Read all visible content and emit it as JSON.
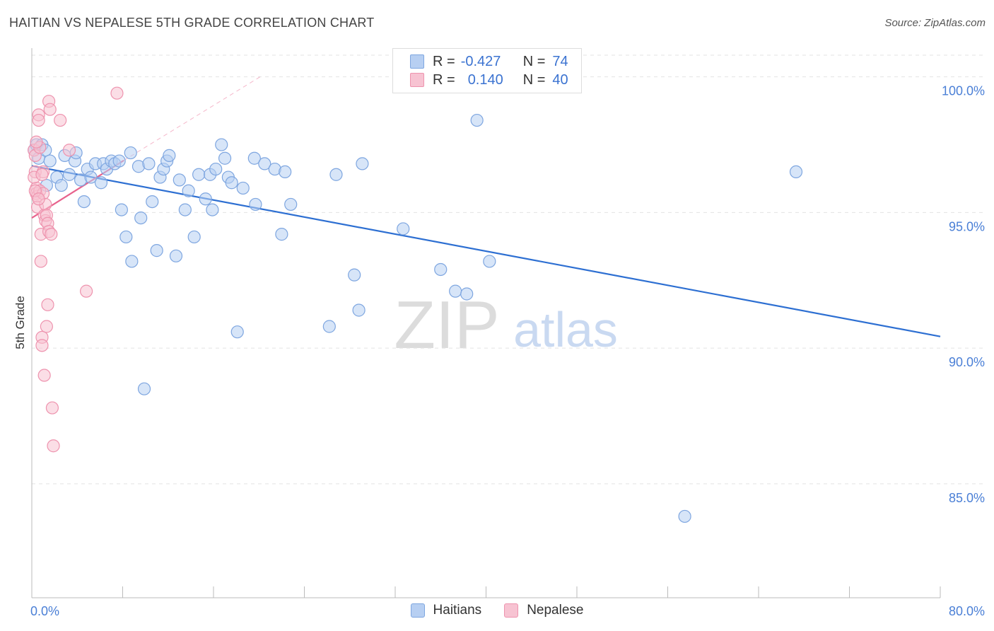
{
  "header": {
    "title": "HAITIAN VS NEPALESE 5TH GRADE CORRELATION CHART",
    "source": "Source: ZipAtlas.com"
  },
  "legend_top": {
    "r_label": "R =",
    "n_label": "N =",
    "haitians": {
      "r": "-0.427",
      "n": "74"
    },
    "nepalese": {
      "r": "0.140",
      "n": "40"
    }
  },
  "colors": {
    "haitians_fill": "#b7cff2",
    "haitians_stroke": "#7ea6e0",
    "haitians_line": "#2d6fd2",
    "nepalese_fill": "#f7c3d2",
    "nepalese_stroke": "#ee93ae",
    "nepalese_line": "#e8628c",
    "axis_label": "#4a7fd6",
    "grid": "#e3e3e3"
  },
  "watermark": {
    "zip": "ZIP",
    "atlas": "atlas"
  },
  "chart_data": {
    "type": "scatter",
    "title": "HAITIAN VS NEPALESE 5TH GRADE CORRELATION CHART",
    "xlabel": "",
    "ylabel": "5th Grade",
    "xlim": [
      0,
      80
    ],
    "ylim": [
      80.8,
      100.8
    ],
    "x_tick_labels": [
      "0.0%",
      "80.0%"
    ],
    "y_ticks": [
      85,
      90,
      95,
      100
    ],
    "y_tick_labels": [
      "85.0%",
      "90.0%",
      "95.0%",
      "100.0%"
    ],
    "legend": [
      "Haitians",
      "Nepalese"
    ],
    "series": [
      {
        "name": "Haitians",
        "trend": {
          "x": [
            0,
            80
          ],
          "y": [
            96.72,
            90.43
          ]
        },
        "points": [
          [
            0.2,
            97.3
          ],
          [
            0.4,
            97.5
          ],
          [
            0.6,
            97.0
          ],
          [
            0.9,
            97.5
          ],
          [
            1.2,
            97.3
          ],
          [
            1.3,
            96.0
          ],
          [
            1.6,
            96.9
          ],
          [
            2.2,
            96.3
          ],
          [
            2.6,
            96.0
          ],
          [
            2.9,
            97.1
          ],
          [
            3.3,
            96.4
          ],
          [
            3.8,
            96.9
          ],
          [
            3.9,
            97.2
          ],
          [
            4.3,
            96.2
          ],
          [
            4.6,
            95.4
          ],
          [
            4.9,
            96.6
          ],
          [
            5.2,
            96.3
          ],
          [
            5.6,
            96.8
          ],
          [
            6.1,
            96.1
          ],
          [
            6.3,
            96.8
          ],
          [
            6.6,
            96.6
          ],
          [
            7.0,
            96.9
          ],
          [
            7.3,
            96.8
          ],
          [
            7.7,
            96.9
          ],
          [
            7.9,
            95.1
          ],
          [
            8.3,
            94.1
          ],
          [
            8.7,
            97.2
          ],
          [
            8.8,
            93.2
          ],
          [
            9.4,
            96.7
          ],
          [
            9.6,
            94.8
          ],
          [
            9.9,
            88.5
          ],
          [
            10.3,
            96.8
          ],
          [
            10.6,
            95.4
          ],
          [
            11.0,
            93.6
          ],
          [
            11.3,
            96.3
          ],
          [
            11.6,
            96.6
          ],
          [
            11.9,
            96.9
          ],
          [
            12.1,
            97.1
          ],
          [
            12.7,
            93.4
          ],
          [
            13.0,
            96.2
          ],
          [
            13.5,
            95.1
          ],
          [
            13.8,
            95.8
          ],
          [
            14.3,
            94.1
          ],
          [
            14.7,
            96.4
          ],
          [
            15.3,
            95.5
          ],
          [
            15.7,
            96.4
          ],
          [
            15.9,
            95.1
          ],
          [
            16.2,
            96.6
          ],
          [
            16.7,
            97.5
          ],
          [
            17.0,
            97.0
          ],
          [
            17.3,
            96.3
          ],
          [
            17.6,
            96.1
          ],
          [
            18.1,
            90.6
          ],
          [
            18.6,
            95.9
          ],
          [
            19.6,
            97.0
          ],
          [
            19.7,
            95.3
          ],
          [
            20.5,
            96.8
          ],
          [
            21.4,
            96.6
          ],
          [
            22.0,
            94.2
          ],
          [
            22.3,
            96.5
          ],
          [
            22.8,
            95.3
          ],
          [
            26.2,
            90.8
          ],
          [
            26.8,
            96.4
          ],
          [
            28.4,
            92.7
          ],
          [
            28.8,
            91.4
          ],
          [
            29.1,
            96.8
          ],
          [
            32.7,
            94.4
          ],
          [
            36.0,
            92.9
          ],
          [
            37.3,
            92.1
          ],
          [
            38.3,
            92.0
          ],
          [
            39.2,
            98.4
          ],
          [
            40.3,
            93.2
          ],
          [
            57.5,
            83.8
          ],
          [
            67.3,
            96.5
          ]
        ]
      },
      {
        "name": "Nepalese",
        "trend": {
          "x": [
            0,
            8.1
          ],
          "y": [
            94.8,
            96.92
          ]
        },
        "dashed_extension": {
          "x": [
            8.1,
            20.1
          ],
          "y": [
            96.92,
            100.0
          ]
        },
        "points": [
          [
            0.2,
            97.3
          ],
          [
            0.3,
            97.1
          ],
          [
            0.3,
            96.5
          ],
          [
            0.4,
            95.9
          ],
          [
            0.4,
            95.7
          ],
          [
            0.5,
            95.6
          ],
          [
            0.5,
            95.2
          ],
          [
            0.6,
            98.6
          ],
          [
            0.6,
            98.4
          ],
          [
            0.7,
            97.4
          ],
          [
            0.7,
            95.8
          ],
          [
            0.8,
            94.2
          ],
          [
            0.8,
            93.2
          ],
          [
            0.9,
            90.4
          ],
          [
            0.9,
            90.1
          ],
          [
            1.0,
            96.5
          ],
          [
            1.0,
            95.7
          ],
          [
            1.1,
            94.9
          ],
          [
            1.1,
            89.0
          ],
          [
            1.2,
            95.3
          ],
          [
            1.2,
            94.7
          ],
          [
            1.3,
            94.9
          ],
          [
            1.4,
            94.6
          ],
          [
            1.4,
            91.6
          ],
          [
            1.3,
            90.8
          ],
          [
            1.5,
            94.3
          ],
          [
            1.5,
            99.1
          ],
          [
            1.6,
            98.8
          ],
          [
            1.7,
            94.2
          ],
          [
            1.8,
            87.8
          ],
          [
            1.9,
            86.4
          ],
          [
            2.5,
            98.4
          ],
          [
            3.3,
            97.3
          ],
          [
            4.8,
            92.1
          ],
          [
            7.5,
            99.4
          ],
          [
            0.2,
            96.3
          ],
          [
            0.3,
            95.8
          ],
          [
            0.4,
            97.6
          ],
          [
            0.9,
            96.4
          ],
          [
            0.6,
            95.5
          ]
        ]
      }
    ]
  }
}
